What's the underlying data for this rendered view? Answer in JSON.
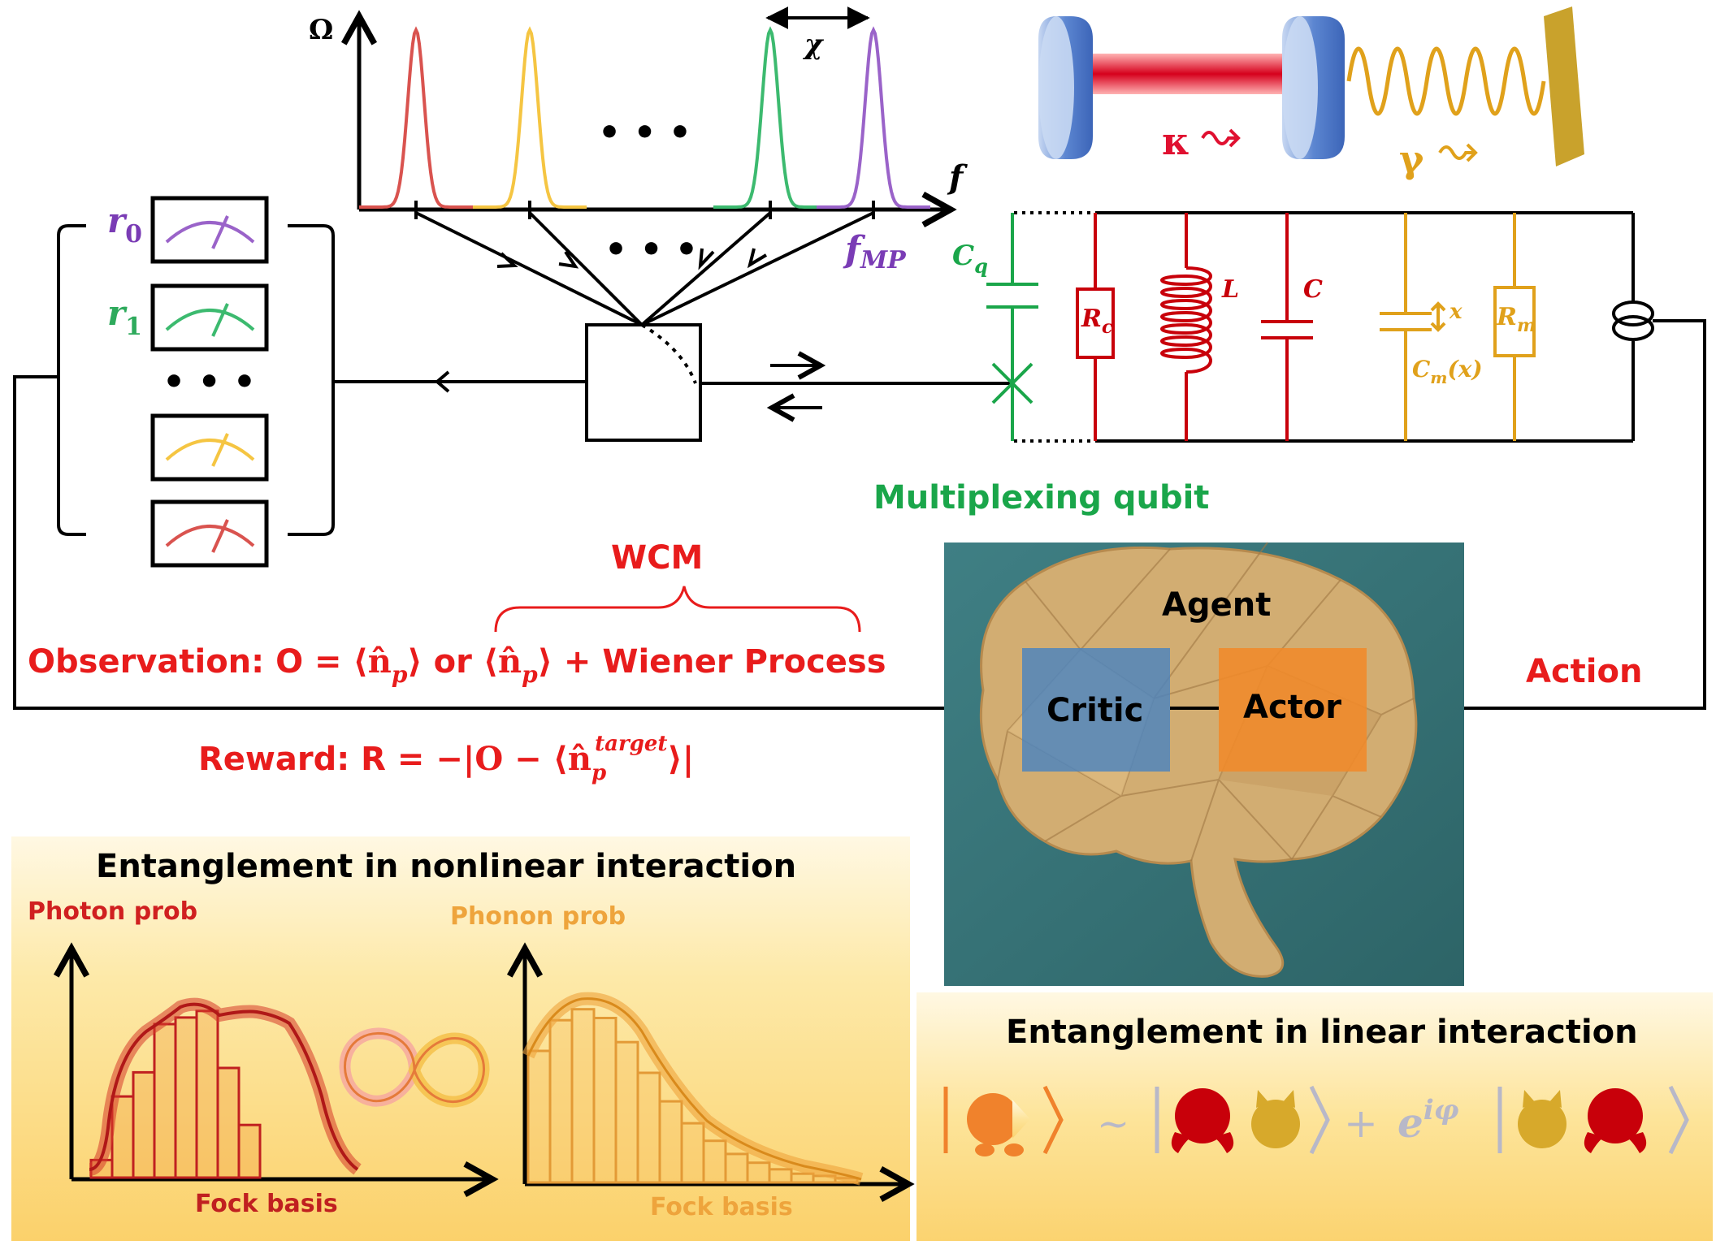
{
  "spectrum": {
    "y_axis": "Ω",
    "x_axis": "f",
    "ellipsis": "• • •",
    "spacing": "χ",
    "mp_freq": "f",
    "mp_sub": "MP",
    "peak_colors": [
      "#d9534f",
      "#f5c542",
      "#3cba6f",
      "#9a63c9"
    ]
  },
  "fan": {
    "ellipsis": "• • •"
  },
  "meters": {
    "r0_main": "r",
    "r0_sub": "0",
    "r1_main": "r",
    "r1_sub": "1",
    "ellipsis": "• • •",
    "colors": [
      "#9a63c9",
      "#3cba6f",
      "#f5c542",
      "#d9534f"
    ]
  },
  "circuit": {
    "cq_main": "C",
    "cq_sub": "q",
    "rc_main": "R",
    "rc_sub": "c",
    "l_label": "L",
    "c_label": "C",
    "x_label": "x",
    "cm_main": "C",
    "cm_sub": "m",
    "cm_arg": "(x)",
    "rm_main": "R",
    "rm_sub": "m",
    "qubit_label": "Multiplexing qubit"
  },
  "optomech": {
    "kappa": "κ",
    "gamma": "γ"
  },
  "agent": {
    "title": "Agent",
    "critic": "Critic",
    "actor": "Actor",
    "action": "Action"
  },
  "wcm": {
    "label": "WCM"
  },
  "observation": {
    "prefix": "Observation: O = ",
    "n1": "⟨n̂",
    "sub1": "p",
    "close1": "⟩",
    "or": " or ",
    "n2": "⟨n̂",
    "sub2": "p",
    "close2": "⟩",
    "suffix": " + Wiener Process"
  },
  "reward": {
    "prefix": "Reward: R = ",
    "expr_a": "−|O − ⟨n̂",
    "sub": "p",
    "sup": "target",
    "expr_b": "⟩|"
  },
  "nonlinear": {
    "title": "Entanglement in nonlinear interaction",
    "photon_label": "Photon prob",
    "phonon_label": "Phonon prob",
    "xlabel_left": "Fock basis",
    "xlabel_right": "Fock basis",
    "photon_bars": [
      0.08,
      0.37,
      0.48,
      0.7,
      0.73,
      0.76,
      0.5,
      0.24
    ],
    "phonon_bars": [
      0.6,
      0.74,
      0.79,
      0.75,
      0.64,
      0.5,
      0.37,
      0.27,
      0.19,
      0.13,
      0.09,
      0.06,
      0.04,
      0.03,
      0.02
    ]
  },
  "linear": {
    "title": "Entanglement in linear interaction",
    "approx": "~",
    "plus": "+",
    "phase_base": "e",
    "phase_exp": "iφ"
  }
}
